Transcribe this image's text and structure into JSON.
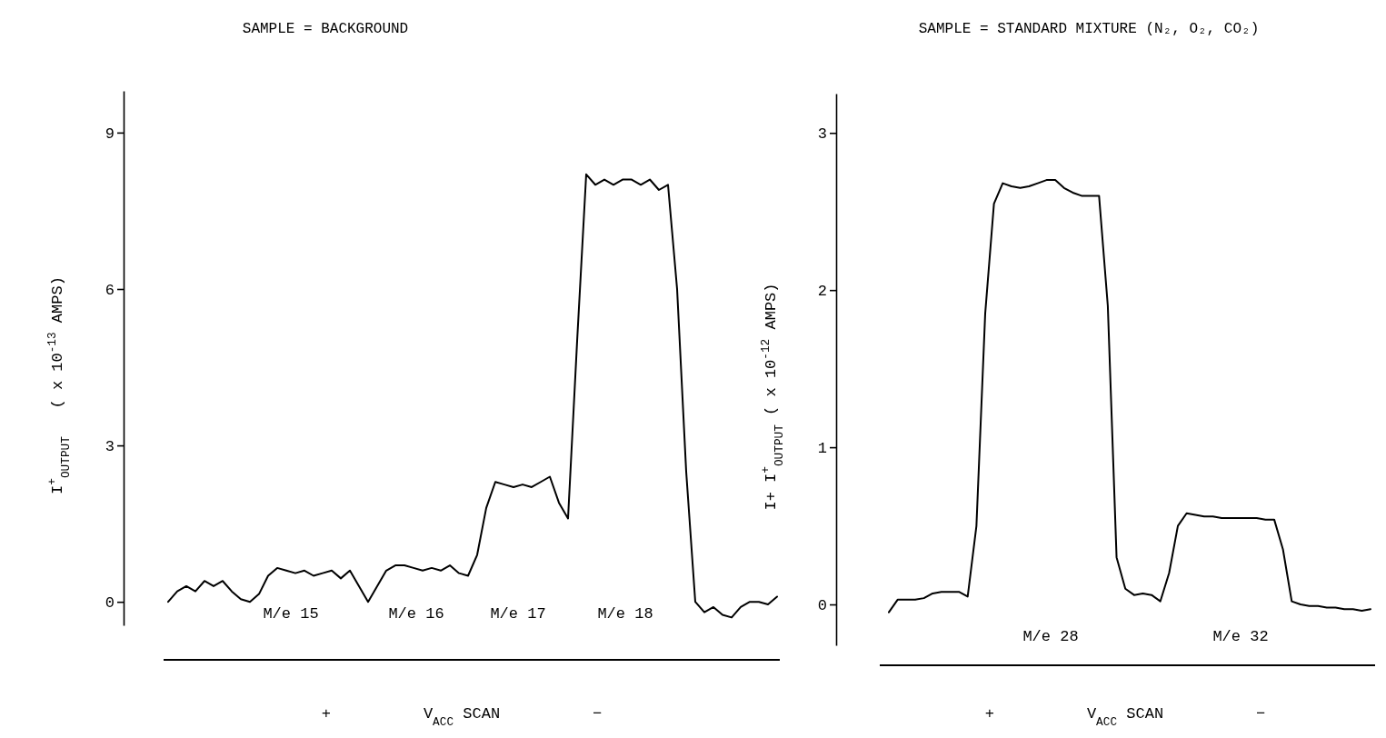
{
  "chart_data": [
    {
      "type": "line",
      "title": "SAMPLE = BACKGROUND",
      "xlabel": "+          V$_{ACC}$ SCAN          −",
      "ylabel": "I$^{+}$$_{OUTPUT}$   ( x 10$^{-13}$ AMPS)",
      "categories": [
        null,
        null,
        null,
        null,
        null,
        null,
        null,
        null,
        null,
        null,
        null,
        null,
        null,
        null,
        null,
        null,
        null,
        null,
        null,
        null,
        null,
        null,
        null,
        null,
        null,
        null,
        null,
        null,
        null,
        null,
        null,
        null,
        null,
        null,
        null,
        null,
        null,
        null,
        null,
        null,
        null,
        null,
        null,
        null,
        null,
        null,
        null,
        null,
        null,
        null,
        null,
        null,
        null,
        null,
        null,
        null,
        null,
        null,
        null,
        null,
        null,
        null,
        null,
        null,
        null,
        null,
        null,
        null
      ],
      "series": [
        {
          "color": "#000000",
          "values": [
            0.0,
            0.2,
            0.3,
            0.2,
            0.4,
            0.3,
            0.4,
            0.2,
            0.05,
            0.0,
            0.15,
            0.5,
            0.65,
            0.6,
            0.55,
            0.6,
            0.5,
            0.55,
            0.6,
            0.45,
            0.6,
            0.3,
            0.0,
            0.3,
            0.6,
            0.7,
            0.7,
            0.65,
            0.6,
            0.65,
            0.6,
            0.7,
            0.55,
            0.5,
            0.9,
            1.8,
            2.3,
            2.25,
            2.2,
            2.25,
            2.2,
            2.3,
            2.4,
            1.9,
            1.6,
            5.0,
            8.2,
            8.0,
            8.1,
            8.0,
            8.1,
            8.1,
            8.0,
            8.1,
            7.9,
            8.0,
            6.0,
            2.5,
            0.0,
            -0.2,
            -0.1,
            -0.25,
            -0.3,
            -0.1,
            0.0,
            0.0,
            -0.05,
            0.1
          ]
        }
      ],
      "ylim": [
        -0.45,
        9.8
      ],
      "yticks": [
        0,
        3,
        6,
        9
      ],
      "tick_labels": "y",
      "annotations": [
        "M/e 15",
        "M/e 16",
        "M/e 17",
        "M/e 18"
      ]
    },
    {
      "type": "line",
      "title": "SAMPLE = STANDARD MIXTURE (N₂, O₂, CO₂)",
      "xlabel": "+          V$_{ACC}$ SCAN          −",
      "ylabel": "I+ I$^{+}$$_{OUTPUT}$ ( x 10$^{-12}$ AMPS)",
      "categories": [
        null,
        null,
        null,
        null,
        null,
        null,
        null,
        null,
        null,
        null,
        null,
        null,
        null,
        null,
        null,
        null,
        null,
        null,
        null,
        null,
        null,
        null,
        null,
        null,
        null,
        null,
        null,
        null,
        null,
        null,
        null,
        null,
        null,
        null,
        null,
        null,
        null,
        null,
        null,
        null,
        null,
        null,
        null,
        null,
        null,
        null,
        null,
        null,
        null,
        null,
        null,
        null,
        null,
        null,
        null,
        null
      ],
      "series": [
        {
          "color": "#000000",
          "values": [
            -0.05,
            0.03,
            0.03,
            0.03,
            0.04,
            0.07,
            0.08,
            0.08,
            0.08,
            0.05,
            0.5,
            1.85,
            2.55,
            2.68,
            2.66,
            2.65,
            2.66,
            2.68,
            2.7,
            2.7,
            2.65,
            2.62,
            2.6,
            2.6,
            2.6,
            1.9,
            0.3,
            0.1,
            0.06,
            0.07,
            0.06,
            0.02,
            0.2,
            0.5,
            0.58,
            0.57,
            0.56,
            0.56,
            0.55,
            0.55,
            0.55,
            0.55,
            0.55,
            0.54,
            0.54,
            0.35,
            0.02,
            0.0,
            -0.01,
            -0.01,
            -0.02,
            -0.02,
            -0.03,
            -0.03,
            -0.04,
            -0.03
          ]
        }
      ],
      "ylim": [
        -0.26,
        3.25
      ],
      "yticks": [
        0,
        1,
        2,
        3
      ],
      "tick_labels": "y",
      "annotations": [
        "M/e 28",
        "M/e 32"
      ]
    }
  ]
}
